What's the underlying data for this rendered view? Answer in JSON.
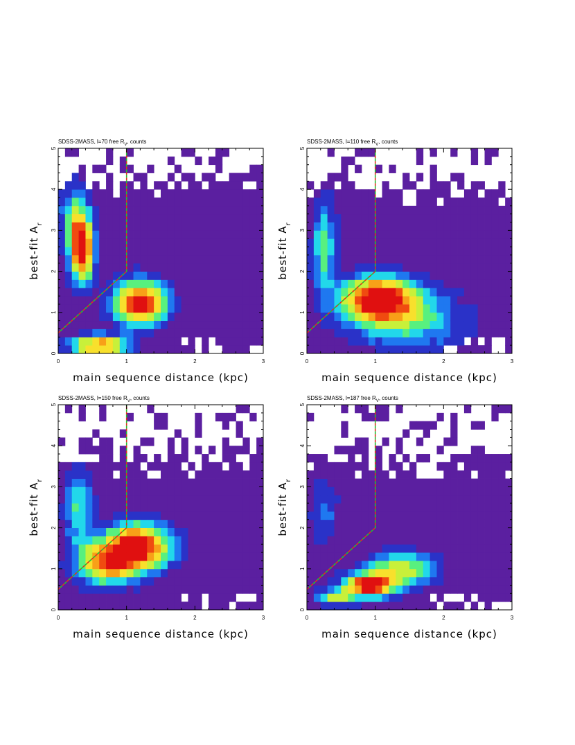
{
  "chart_data": [
    {
      "type": "heatmap",
      "title": "SDSS-2MASS, l=70 free R_V, counts",
      "title_main": "SDSS-2MASS, l=70 free R",
      "title_sub": "V",
      "title_tail": ", counts",
      "xlabel": "main sequence distance (kpc)",
      "ylabel_main": "best-fit A",
      "ylabel_sub": "r",
      "xlim": [
        0,
        3
      ],
      "ylim": [
        0,
        5
      ],
      "xticks": [
        "0",
        "1",
        "2",
        "3"
      ],
      "yticks": [
        "0",
        "1",
        "2",
        "3",
        "4",
        "5"
      ],
      "bin_size": [
        0.1,
        0.2
      ],
      "grid": false,
      "colormap": [
        "#5b1fa0",
        "#2a32c8",
        "#1f78f0",
        "#22d8ea",
        "#58f07f",
        "#c8f03a",
        "#f8e02c",
        "#f8a018",
        "#f04b10",
        "#e01010"
      ],
      "overlay_line": {
        "x": [
          0,
          1,
          1
        ],
        "y": [
          0.5,
          2.0,
          5.0
        ],
        "colors": [
          "#e03020",
          "#20c030"
        ]
      },
      "blobs": [
        {
          "x": 0.35,
          "y": 2.5,
          "sx": 0.12,
          "sy": 0.55,
          "amp": 0.95
        },
        {
          "x": 1.2,
          "y": 1.25,
          "sx": 0.28,
          "sy": 0.38,
          "amp": 1.0
        },
        {
          "x": 0.6,
          "y": 0.2,
          "sx": 0.3,
          "sy": 0.18,
          "amp": 0.8
        },
        {
          "x": 0.25,
          "y": 3.3,
          "sx": 0.15,
          "sy": 0.6,
          "amp": 0.45
        }
      ],
      "base_level": 0.05,
      "y_top_edge": 4.2
    },
    {
      "type": "heatmap",
      "title": "SDSS-2MASS, l=110 free R_V, counts",
      "title_main": "SDSS-2MASS, l=110 free R",
      "title_sub": "V",
      "title_tail": ", counts",
      "xlabel": "main sequence distance (kpc)",
      "ylabel_main": "best-fit A",
      "ylabel_sub": "r",
      "xlim": [
        0,
        3
      ],
      "ylim": [
        0,
        5
      ],
      "xticks": [
        "0",
        "1",
        "2",
        "3"
      ],
      "yticks": [
        "0",
        "1",
        "2",
        "3",
        "4",
        "5"
      ],
      "bin_size": [
        0.1,
        0.2
      ],
      "grid": false,
      "colormap": [
        "#5b1fa0",
        "#2a32c8",
        "#1f78f0",
        "#22d8ea",
        "#58f07f",
        "#c8f03a",
        "#f8e02c",
        "#f8a018",
        "#f04b10",
        "#e01010"
      ],
      "overlay_line": {
        "x": [
          0,
          1,
          1
        ],
        "y": [
          0.5,
          2.0,
          5.0
        ],
        "colors": [
          "#e03020",
          "#20c030"
        ]
      },
      "blobs": [
        {
          "x": 1.05,
          "y": 1.35,
          "sx": 0.38,
          "sy": 0.38,
          "amp": 1.0
        },
        {
          "x": 0.25,
          "y": 2.6,
          "sx": 0.12,
          "sy": 0.8,
          "amp": 0.45
        },
        {
          "x": 1.5,
          "y": 0.8,
          "sx": 0.6,
          "sy": 0.5,
          "amp": 0.4
        }
      ],
      "base_level": 0.06,
      "y_top_edge": 4.0
    },
    {
      "type": "heatmap",
      "title": "SDSS-2MASS, l=150 free R_V, counts",
      "title_main": "SDSS-2MASS, l=150 free R",
      "title_sub": "V",
      "title_tail": ", counts",
      "xlabel": "main sequence distance (kpc)",
      "ylabel_main": "best-fit A",
      "ylabel_sub": "r",
      "xlim": [
        0,
        3
      ],
      "ylim": [
        0,
        5
      ],
      "xticks": [
        "0",
        "1",
        "2",
        "3"
      ],
      "yticks": [
        "0",
        "1",
        "2",
        "3",
        "4",
        "5"
      ],
      "bin_size": [
        0.1,
        0.2
      ],
      "grid": false,
      "colormap": [
        "#5b1fa0",
        "#2a32c8",
        "#1f78f0",
        "#22d8ea",
        "#58f07f",
        "#c8f03a",
        "#f8e02c",
        "#f8a018",
        "#f04b10",
        "#e01010"
      ],
      "overlay_line": {
        "x": [
          0,
          1,
          1
        ],
        "y": [
          0.5,
          2.0,
          5.0
        ],
        "colors": [
          "#e03020",
          "#20c030"
        ]
      },
      "blobs": [
        {
          "x": 1.15,
          "y": 1.55,
          "sx": 0.35,
          "sy": 0.4,
          "amp": 1.0
        },
        {
          "x": 0.7,
          "y": 1.1,
          "sx": 0.3,
          "sy": 0.35,
          "amp": 0.7
        },
        {
          "x": 0.3,
          "y": 2.5,
          "sx": 0.15,
          "sy": 0.7,
          "amp": 0.4
        }
      ],
      "base_level": 0.06,
      "y_top_edge": 3.6
    },
    {
      "type": "heatmap",
      "title": "SDSS-2MASS, l=187 free R_V, counts",
      "title_main": "SDSS-2MASS, l=187 free R",
      "title_sub": "V",
      "title_tail": ", counts",
      "xlabel": "main sequence distance (kpc)",
      "ylabel_main": "best-fit A",
      "ylabel_sub": "r",
      "xlim": [
        0,
        3
      ],
      "ylim": [
        0,
        5
      ],
      "xticks": [
        "0",
        "1",
        "2",
        "3"
      ],
      "yticks": [
        "0",
        "1",
        "2",
        "3",
        "4",
        "5"
      ],
      "bin_size": [
        0.1,
        0.2
      ],
      "grid": false,
      "colormap": [
        "#5b1fa0",
        "#2a32c8",
        "#1f78f0",
        "#22d8ea",
        "#58f07f",
        "#c8f03a",
        "#f8e02c",
        "#f8a018",
        "#f04b10",
        "#e01010"
      ],
      "overlay_line": {
        "x": [
          0,
          1,
          1
        ],
        "y": [
          0.5,
          2.0,
          5.0
        ],
        "colors": [
          "#e03020",
          "#20c030"
        ]
      },
      "blobs": [
        {
          "x": 0.9,
          "y": 0.6,
          "sx": 0.25,
          "sy": 0.2,
          "amp": 1.0
        },
        {
          "x": 1.4,
          "y": 1.0,
          "sx": 0.35,
          "sy": 0.3,
          "amp": 0.6
        },
        {
          "x": 0.4,
          "y": 0.3,
          "sx": 0.2,
          "sy": 0.15,
          "amp": 0.5
        },
        {
          "x": 0.25,
          "y": 2.4,
          "sx": 0.15,
          "sy": 0.6,
          "amp": 0.25
        }
      ],
      "base_level": 0.06,
      "y_top_edge": 3.6
    }
  ]
}
